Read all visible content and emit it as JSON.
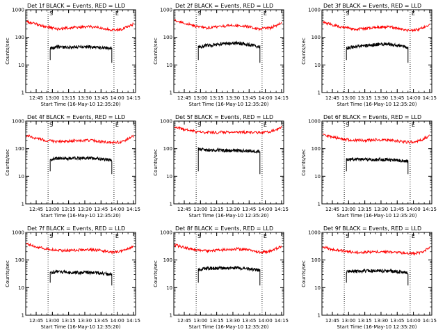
{
  "figure": {
    "background": "#ffffff",
    "events_color": "#000000",
    "lld_color": "#ff0000"
  },
  "chart_data": [
    {
      "type": "line",
      "title": "Det 1f BLACK = Events, RED = LLD",
      "xlabel": "Start Time (16-May-10 12:35:20)",
      "ylabel": "Counts/sec",
      "x_ticks": [
        "12:45",
        "13:00",
        "13:15",
        "13:30",
        "13:45",
        "14:00",
        "14:15"
      ],
      "y_ticks": [
        "1",
        "10",
        "100",
        "1000"
      ],
      "y_scale": "log",
      "ylim": [
        1,
        1000
      ],
      "xlim": [
        "12:35:20",
        "14:17"
      ],
      "grid": false,
      "markers": [
        {
          "label": "S",
          "time": "12:56"
        },
        {
          "label": "E",
          "time": "13:57"
        }
      ],
      "series": [
        {
          "name": "LLD",
          "color": "#ff0000",
          "x": [
            "12:36",
            "12:45",
            "12:55",
            "13:05",
            "13:15",
            "13:25",
            "13:35",
            "13:45",
            "13:55",
            "14:05",
            "14:15"
          ],
          "values": [
            380,
            300,
            240,
            200,
            220,
            230,
            240,
            220,
            180,
            200,
            300
          ]
        },
        {
          "name": "Events",
          "color": "#000000",
          "x": [
            "12:58",
            "13:05",
            "13:15",
            "13:25",
            "13:35",
            "13:45",
            "13:55"
          ],
          "values": [
            40,
            45,
            45,
            45,
            45,
            43,
            40
          ]
        }
      ]
    },
    {
      "type": "line",
      "title": "Det 2f BLACK = Events, RED = LLD",
      "xlabel": "Start Time (16-May-10 12:35:20)",
      "ylabel": "Counts/sec",
      "x_ticks": [
        "12:45",
        "13:00",
        "13:15",
        "13:30",
        "13:45",
        "14:00",
        "14:15"
      ],
      "y_ticks": [
        "1",
        "10",
        "100",
        "1000"
      ],
      "y_scale": "log",
      "ylim": [
        1,
        1000
      ],
      "xlim": [
        "12:35:20",
        "14:17"
      ],
      "grid": false,
      "markers": [
        {
          "label": "S",
          "time": "12:56"
        },
        {
          "label": "E",
          "time": "13:57"
        }
      ],
      "series": [
        {
          "name": "LLD",
          "color": "#ff0000",
          "x": [
            "12:36",
            "12:45",
            "12:55",
            "13:05",
            "13:15",
            "13:25",
            "13:35",
            "13:45",
            "13:55",
            "14:05",
            "14:15"
          ],
          "values": [
            420,
            330,
            260,
            220,
            240,
            260,
            270,
            240,
            200,
            220,
            330
          ]
        },
        {
          "name": "Events",
          "color": "#000000",
          "x": [
            "12:58",
            "13:05",
            "13:15",
            "13:25",
            "13:35",
            "13:45",
            "13:55"
          ],
          "values": [
            45,
            50,
            55,
            60,
            62,
            55,
            45
          ]
        }
      ]
    },
    {
      "type": "line",
      "title": "Det 3f BLACK = Events, RED = LLD",
      "xlabel": "Start Time (16-May-10 12:35:20)",
      "ylabel": "Counts/sec",
      "x_ticks": [
        "12:45",
        "13:00",
        "13:15",
        "13:30",
        "13:45",
        "14:00",
        "14:15"
      ],
      "y_ticks": [
        "1",
        "10",
        "100",
        "1000"
      ],
      "y_scale": "log",
      "ylim": [
        1,
        1000
      ],
      "xlim": [
        "12:35:20",
        "14:17"
      ],
      "grid": false,
      "markers": [
        {
          "label": "S",
          "time": "12:56"
        },
        {
          "label": "E",
          "time": "13:57"
        }
      ],
      "series": [
        {
          "name": "LLD",
          "color": "#ff0000",
          "x": [
            "12:36",
            "12:45",
            "12:55",
            "13:05",
            "13:15",
            "13:25",
            "13:35",
            "13:45",
            "13:55",
            "14:05",
            "14:15"
          ],
          "values": [
            360,
            280,
            230,
            200,
            210,
            230,
            240,
            220,
            180,
            190,
            300
          ]
        },
        {
          "name": "Events",
          "color": "#000000",
          "x": [
            "12:58",
            "13:05",
            "13:15",
            "13:25",
            "13:35",
            "13:45",
            "13:55"
          ],
          "values": [
            40,
            45,
            50,
            55,
            58,
            52,
            42
          ]
        }
      ]
    },
    {
      "type": "line",
      "title": "Det 4f BLACK = Events, RED = LLD",
      "xlabel": "Start Time (16-May-10 12:35:20)",
      "ylabel": "Counts/sec",
      "x_ticks": [
        "12:45",
        "13:00",
        "13:15",
        "13:30",
        "13:45",
        "14:00",
        "14:15"
      ],
      "y_ticks": [
        "1",
        "10",
        "100",
        "1000"
      ],
      "y_scale": "log",
      "ylim": [
        1,
        1000
      ],
      "xlim": [
        "12:35:20",
        "14:17"
      ],
      "grid": false,
      "markers": [
        {
          "label": "S",
          "time": "12:56"
        },
        {
          "label": "E",
          "time": "13:57"
        }
      ],
      "series": [
        {
          "name": "LLD",
          "color": "#ff0000",
          "x": [
            "12:36",
            "12:45",
            "12:55",
            "13:05",
            "13:15",
            "13:25",
            "13:35",
            "13:45",
            "13:55",
            "14:05",
            "14:15"
          ],
          "values": [
            300,
            240,
            200,
            180,
            190,
            200,
            200,
            180,
            160,
            180,
            280
          ]
        },
        {
          "name": "Events",
          "color": "#000000",
          "x": [
            "12:58",
            "13:05",
            "13:15",
            "13:25",
            "13:35",
            "13:45",
            "13:55"
          ],
          "values": [
            40,
            45,
            45,
            45,
            45,
            43,
            38
          ]
        }
      ]
    },
    {
      "type": "line",
      "title": "Det 5f BLACK = Events, RED = LLD",
      "xlabel": "Start Time (16-May-10 12:35:20)",
      "ylabel": "Counts/sec",
      "x_ticks": [
        "12:45",
        "13:00",
        "13:15",
        "13:30",
        "13:45",
        "14:00",
        "14:15"
      ],
      "y_ticks": [
        "1",
        "10",
        "100",
        "1000"
      ],
      "y_scale": "log",
      "ylim": [
        1,
        1000
      ],
      "xlim": [
        "12:35:20",
        "14:17"
      ],
      "grid": false,
      "markers": [
        {
          "label": "S",
          "time": "12:56"
        },
        {
          "label": "E",
          "time": "13:57"
        }
      ],
      "series": [
        {
          "name": "LLD",
          "color": "#ff0000",
          "x": [
            "12:36",
            "12:45",
            "12:55",
            "13:05",
            "13:15",
            "13:25",
            "13:35",
            "13:45",
            "13:55",
            "14:05",
            "14:15"
          ],
          "values": [
            600,
            500,
            420,
            390,
            390,
            400,
            400,
            390,
            380,
            420,
            600
          ]
        },
        {
          "name": "Events",
          "color": "#000000",
          "x": [
            "12:58",
            "13:05",
            "13:15",
            "13:25",
            "13:35",
            "13:45",
            "13:55"
          ],
          "values": [
            95,
            90,
            88,
            85,
            85,
            83,
            80
          ]
        }
      ]
    },
    {
      "type": "line",
      "title": "Det 6f BLACK = Events, RED = LLD",
      "xlabel": "Start Time (16-May-10 12:35:20)",
      "ylabel": "Counts/sec",
      "x_ticks": [
        "12:45",
        "13:00",
        "13:15",
        "13:30",
        "13:45",
        "14:00",
        "14:15"
      ],
      "y_ticks": [
        "1",
        "10",
        "100",
        "1000"
      ],
      "y_scale": "log",
      "ylim": [
        1,
        1000
      ],
      "xlim": [
        "12:35:20",
        "14:17"
      ],
      "grid": false,
      "markers": [
        {
          "label": "S",
          "time": "12:56"
        },
        {
          "label": "E",
          "time": "13:57"
        }
      ],
      "series": [
        {
          "name": "LLD",
          "color": "#ff0000",
          "x": [
            "12:36",
            "12:45",
            "12:55",
            "13:05",
            "13:15",
            "13:25",
            "13:35",
            "13:45",
            "13:55",
            "14:05",
            "14:15"
          ],
          "values": [
            320,
            260,
            220,
            200,
            200,
            210,
            210,
            190,
            170,
            190,
            290
          ]
        },
        {
          "name": "Events",
          "color": "#000000",
          "x": [
            "12:58",
            "13:05",
            "13:15",
            "13:25",
            "13:35",
            "13:45",
            "13:55"
          ],
          "values": [
            40,
            42,
            40,
            40,
            40,
            38,
            35
          ]
        }
      ]
    },
    {
      "type": "line",
      "title": "Det 7f BLACK = Events, RED = LLD",
      "xlabel": "Start Time (16-May-10 12:35:20)",
      "ylabel": "Counts/sec",
      "x_ticks": [
        "12:45",
        "13:00",
        "13:15",
        "13:30",
        "13:45",
        "14:00",
        "14:15"
      ],
      "y_ticks": [
        "1",
        "10",
        "100",
        "1000"
      ],
      "y_scale": "log",
      "ylim": [
        1,
        1000
      ],
      "xlim": [
        "12:35:20",
        "14:17"
      ],
      "grid": false,
      "markers": [
        {
          "label": "S",
          "time": "12:56"
        },
        {
          "label": "E",
          "time": "13:57"
        }
      ],
      "series": [
        {
          "name": "LLD",
          "color": "#ff0000",
          "x": [
            "12:36",
            "12:45",
            "12:55",
            "13:05",
            "13:15",
            "13:25",
            "13:35",
            "13:45",
            "13:55",
            "14:05",
            "14:15"
          ],
          "values": [
            380,
            300,
            250,
            220,
            220,
            230,
            240,
            220,
            190,
            210,
            320
          ]
        },
        {
          "name": "Events",
          "color": "#000000",
          "x": [
            "12:58",
            "13:05",
            "13:15",
            "13:25",
            "13:35",
            "13:45",
            "13:55"
          ],
          "values": [
            35,
            38,
            35,
            35,
            35,
            33,
            30
          ]
        }
      ]
    },
    {
      "type": "line",
      "title": "Det 8f BLACK = Events, RED = LLD",
      "xlabel": "Start Time (16-May-10 12:35:20)",
      "ylabel": "Counts/sec",
      "x_ticks": [
        "12:45",
        "13:00",
        "13:15",
        "13:30",
        "13:45",
        "14:00",
        "14:15"
      ],
      "y_ticks": [
        "1",
        "10",
        "100",
        "1000"
      ],
      "y_scale": "log",
      "ylim": [
        1,
        1000
      ],
      "xlim": [
        "12:35:20",
        "14:17"
      ],
      "grid": false,
      "markers": [
        {
          "label": "S",
          "time": "12:56"
        },
        {
          "label": "E",
          "time": "13:57"
        }
      ],
      "series": [
        {
          "name": "LLD",
          "color": "#ff0000",
          "x": [
            "12:36",
            "12:45",
            "12:55",
            "13:05",
            "13:15",
            "13:25",
            "13:35",
            "13:45",
            "13:55",
            "14:05",
            "14:15"
          ],
          "values": [
            350,
            280,
            240,
            210,
            220,
            240,
            250,
            230,
            190,
            210,
            320
          ]
        },
        {
          "name": "Events",
          "color": "#000000",
          "x": [
            "12:58",
            "13:05",
            "13:15",
            "13:25",
            "13:35",
            "13:45",
            "13:55"
          ],
          "values": [
            45,
            50,
            50,
            52,
            52,
            48,
            42
          ]
        }
      ]
    },
    {
      "type": "line",
      "title": "Det 9f BLACK = Events, RED = LLD",
      "xlabel": "Start Time (16-May-10 12:35:20)",
      "ylabel": "Counts/sec",
      "x_ticks": [
        "12:45",
        "13:00",
        "13:15",
        "13:30",
        "13:45",
        "14:00",
        "14:15"
      ],
      "y_ticks": [
        "1",
        "10",
        "100",
        "1000"
      ],
      "y_scale": "log",
      "ylim": [
        1,
        1000
      ],
      "xlim": [
        "12:35:20",
        "14:17"
      ],
      "grid": false,
      "markers": [
        {
          "label": "S",
          "time": "12:56"
        },
        {
          "label": "E",
          "time": "13:57"
        }
      ],
      "series": [
        {
          "name": "LLD",
          "color": "#ff0000",
          "x": [
            "12:36",
            "12:45",
            "12:55",
            "13:05",
            "13:15",
            "13:25",
            "13:35",
            "13:45",
            "13:55",
            "14:05",
            "14:15"
          ],
          "values": [
            300,
            240,
            210,
            190,
            190,
            200,
            200,
            190,
            170,
            180,
            270
          ]
        },
        {
          "name": "Events",
          "color": "#000000",
          "x": [
            "12:58",
            "13:05",
            "13:15",
            "13:25",
            "13:35",
            "13:45",
            "13:55"
          ],
          "values": [
            38,
            40,
            40,
            40,
            40,
            38,
            34
          ]
        }
      ]
    }
  ]
}
